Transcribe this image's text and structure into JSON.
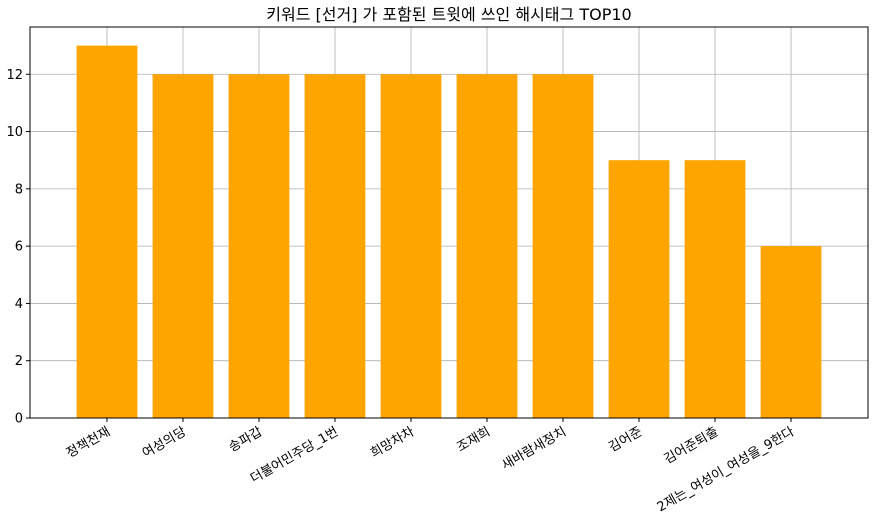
{
  "chart_data": {
    "type": "bar",
    "title": "키워드 [선거] 가 포함된 트윗에 쓰인 해시태그 TOP10",
    "xlabel": "",
    "ylabel": "",
    "categories": [
      "정책천재",
      "여성의당",
      "송파갑",
      "더불어민주당_1번",
      "희망차차",
      "조재희",
      "새바람새정치",
      "김어준",
      "김어준퇴출",
      "2제는_여성이_여성을_9한다"
    ],
    "values": [
      13,
      12,
      12,
      12,
      12,
      12,
      12,
      9,
      9,
      6
    ],
    "ylim": [
      0,
      13.65
    ],
    "yticks": [
      0,
      2,
      4,
      6,
      8,
      10,
      12
    ],
    "grid": true,
    "bar_color": "#ffa500"
  }
}
